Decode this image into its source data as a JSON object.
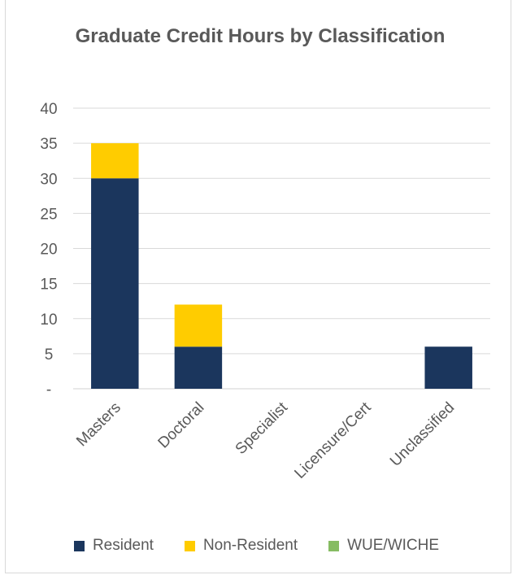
{
  "chart_data": {
    "type": "bar",
    "stacked": true,
    "title": "Graduate Credit Hours by Classification",
    "categories": [
      "Masters",
      "Doctoral",
      "Specialist",
      "Licensure/Cert",
      "Unclassified"
    ],
    "series": [
      {
        "name": "Resident",
        "color": "#1b365d",
        "values": [
          30,
          6,
          0,
          0,
          6
        ]
      },
      {
        "name": "Non-Resident",
        "color": "#ffcc00",
        "values": [
          5,
          6,
          0,
          0,
          0
        ]
      },
      {
        "name": "WUE/WICHE",
        "color": "#86bc62",
        "values": [
          0,
          0,
          0,
          0,
          0
        ]
      }
    ],
    "ylim": [
      0,
      40
    ],
    "yticks": [
      "-",
      "5",
      "10",
      "15",
      "20",
      "25",
      "30",
      "35",
      "40"
    ],
    "grid": true,
    "legend_position": "bottom"
  }
}
